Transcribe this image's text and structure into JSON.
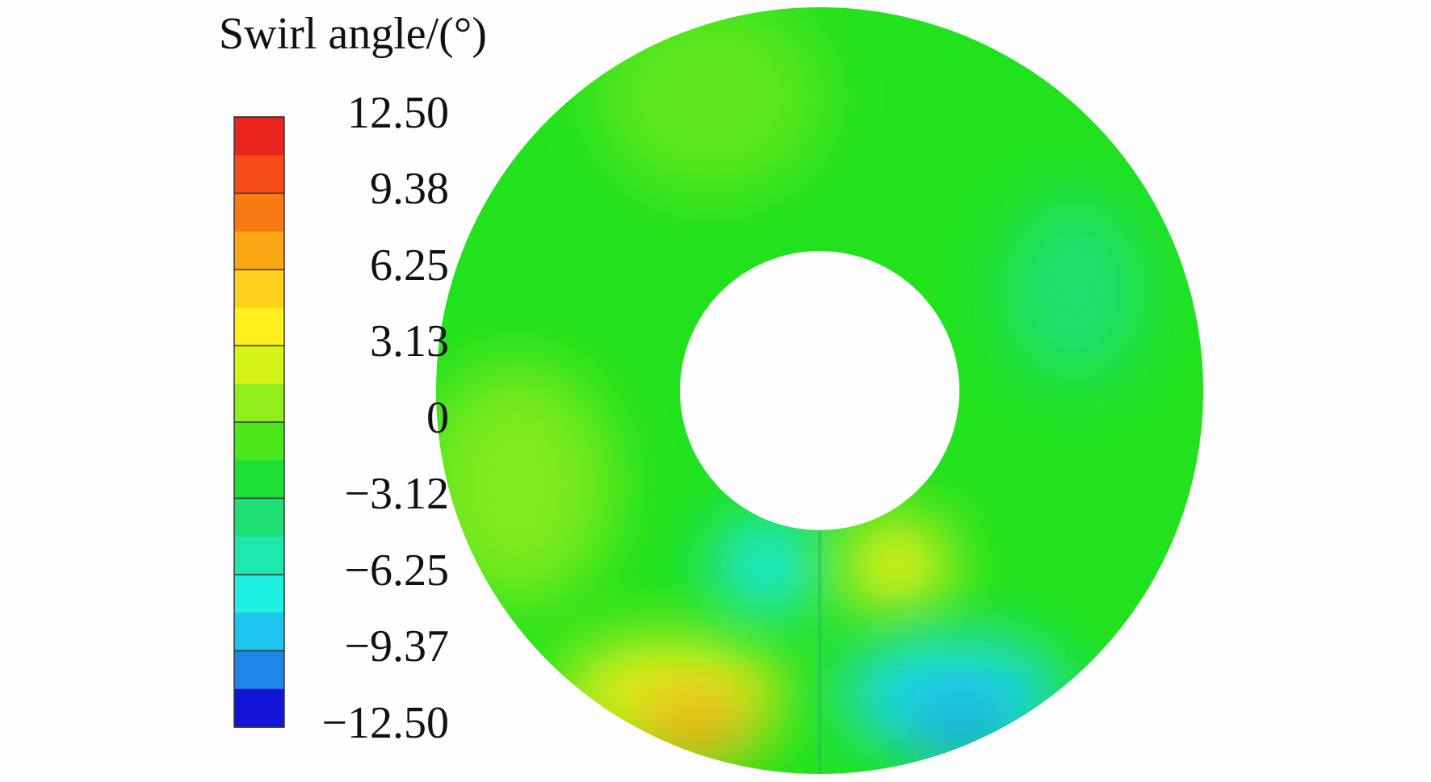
{
  "chart_data": {
    "type": "contour",
    "title": "Swirl angle/(°)",
    "ylim": [
      -12.5,
      12.5
    ],
    "yticks": [
      {
        "value": 12.5,
        "label": "12.50"
      },
      {
        "value": 9.38,
        "label": "9.38"
      },
      {
        "value": 6.25,
        "label": "6.25"
      },
      {
        "value": 3.13,
        "label": "3.13"
      },
      0,
      {
        "value": -3.12,
        "label": "−3.12"
      },
      {
        "value": -6.25,
        "label": "−6.25"
      },
      {
        "value": -9.37,
        "label": "−9.37"
      },
      {
        "value": -12.5,
        "label": "−12.50"
      }
    ],
    "colormap": [
      "#e8241c",
      "#f44c14",
      "#f87a12",
      "#fca814",
      "#ffd01c",
      "#fff01c",
      "#d4f418",
      "#90ee1c",
      "#4ce81c",
      "#1ce034",
      "#1ee074",
      "#1ee8ac",
      "#1ef0e4",
      "#1ec4f0",
      "#1e86e8",
      "#1414d8"
    ]
  }
}
